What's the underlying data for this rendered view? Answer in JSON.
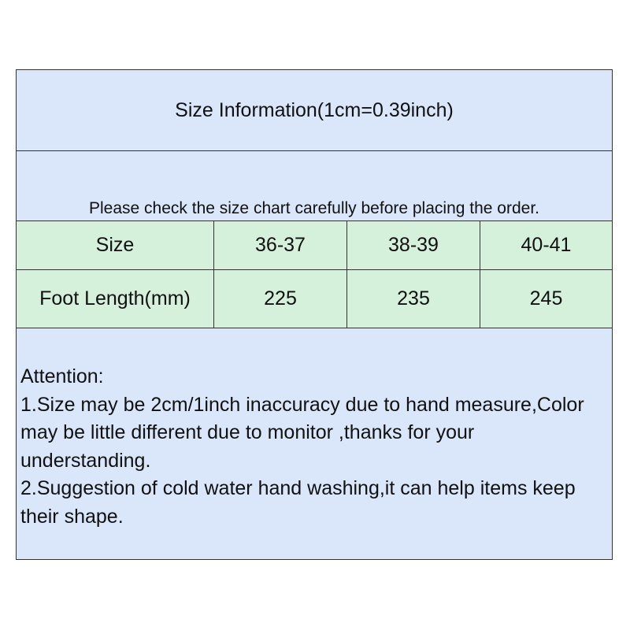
{
  "title": "Size Information(1cm=0.39inch)",
  "note": "Please check the size chart carefully before placing the order.",
  "table": {
    "header": [
      "Size",
      "36-37",
      "38-39",
      "40-41"
    ],
    "rows": [
      [
        "Foot Length(mm)",
        "225",
        "235",
        "245"
      ]
    ]
  },
  "attention": {
    "heading": "Attention:",
    "lines": [
      "1.Size may be 2cm/1inch inaccuracy due to hand measure,Color may be little different due to monitor ,thanks for your understanding.",
      "2.Suggestion of cold water hand washing,it can help items keep their shape."
    ]
  },
  "colors": {
    "blue": "#dae6fa",
    "green": "#d5f0db",
    "border": "#333333"
  }
}
